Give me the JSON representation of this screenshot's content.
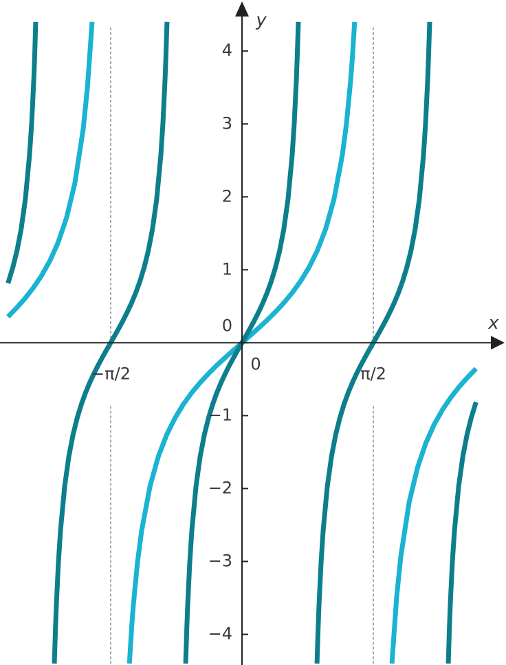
{
  "chart_data": {
    "type": "line",
    "x_label": "x",
    "y_label": "y",
    "xlim": [
      -2.895,
      3.158
    ],
    "ylim": [
      -4.42,
      4.7
    ],
    "xticks": [
      {
        "value": -1.5708,
        "label": "−π/2"
      },
      {
        "value": 0,
        "label": "0"
      },
      {
        "value": 1.5708,
        "label": "π/2"
      }
    ],
    "yticks": [
      {
        "value": -4,
        "label": "−4"
      },
      {
        "value": -3,
        "label": "−3"
      },
      {
        "value": -2,
        "label": "−2"
      },
      {
        "value": -1,
        "label": "−1"
      },
      0,
      1,
      2,
      3,
      4
    ],
    "series": [
      {
        "color": "#1ab3d1",
        "x": [
          -2.8,
          -2.7,
          -2.6,
          -2.5,
          -2.4,
          -2.3,
          -2.2,
          -2.1,
          -2.0,
          -1.9,
          -1.85,
          -1.8,
          -1.794,
          -1.5708,
          -1.347,
          -1.32,
          -1.3,
          -1.25,
          -1.2,
          -1.1,
          -1.0,
          -0.9,
          -0.8,
          -0.7,
          -0.6,
          -0.5,
          -0.4,
          -0.3,
          -0.2,
          -0.1,
          0,
          0.1,
          0.2,
          0.3,
          0.4,
          0.5,
          0.6,
          0.7,
          0.8,
          0.9,
          1.0,
          1.1,
          1.2,
          1.25,
          1.3,
          1.32,
          1.347,
          1.5708,
          1.794,
          1.8,
          1.85,
          1.9,
          2.0,
          2.1,
          2.2,
          2.3,
          2.4,
          2.5,
          2.6,
          2.7,
          2.8
        ],
        "values": [
          0.356,
          0.473,
          0.602,
          0.747,
          0.916,
          1.119,
          1.374,
          1.71,
          2.185,
          2.927,
          3.488,
          4.286,
          4.4,
          null,
          -4.4,
          -3.903,
          -3.602,
          -3.009,
          -2.572,
          -1.965,
          -1.557,
          -1.26,
          -1.03,
          -0.842,
          -0.684,
          -0.546,
          -0.423,
          -0.309,
          -0.203,
          -0.1,
          0,
          0.1,
          0.203,
          0.309,
          0.423,
          0.546,
          0.684,
          0.842,
          1.03,
          1.26,
          1.557,
          1.965,
          2.572,
          3.009,
          3.602,
          3.903,
          4.4,
          null,
          -4.4,
          -4.286,
          -3.488,
          -2.927,
          -2.185,
          -1.71,
          -1.374,
          -1.119,
          -0.916,
          -0.747,
          -0.602,
          -0.473,
          -0.356
        ]
      },
      {
        "color": "#0d7f8c",
        "x": [
          -2.8,
          -2.792,
          -2.742,
          -2.692,
          -2.642,
          -2.592,
          -2.542,
          -2.516,
          -2.491,
          -2.481,
          -2.468,
          -2.356,
          -2.245,
          -2.231,
          -2.221,
          -2.196,
          -2.171,
          -2.121,
          -2.071,
          -2.021,
          -1.971,
          -1.921,
          -1.871,
          -1.821,
          -1.771,
          -1.721,
          -1.671,
          -1.621,
          -1.571,
          -1.521,
          -1.471,
          -1.421,
          -1.371,
          -1.321,
          -1.271,
          -1.221,
          -1.171,
          -1.121,
          -1.071,
          -1.021,
          -0.971,
          -0.946,
          -0.921,
          -0.911,
          -0.897,
          -0.785,
          -0.674,
          -0.66,
          -0.65,
          -0.625,
          -0.6,
          -0.55,
          -0.5,
          -0.45,
          -0.4,
          -0.35,
          -0.3,
          -0.25,
          -0.2,
          -0.15,
          -0.1,
          -0.05,
          0,
          0.05,
          0.1,
          0.15,
          0.2,
          0.25,
          0.3,
          0.35,
          0.4,
          0.45,
          0.5,
          0.55,
          0.6,
          0.625,
          0.65,
          0.66,
          0.674,
          0.785,
          0.897,
          0.911,
          0.921,
          0.946,
          0.971,
          1.021,
          1.071,
          1.121,
          1.171,
          1.221,
          1.271,
          1.321,
          1.371,
          1.421,
          1.471,
          1.521,
          1.571,
          1.621,
          1.671,
          1.721,
          1.771,
          1.821,
          1.871,
          1.921,
          1.971,
          2.021,
          2.071,
          2.121,
          2.171,
          2.196,
          2.221,
          2.231,
          2.245,
          2.356,
          2.468,
          2.481,
          2.491,
          2.516,
          2.542,
          2.592,
          2.642,
          2.692,
          2.742,
          2.792,
          2.8
        ],
        "values": [
          0.815,
          0.842,
          1.03,
          1.26,
          1.557,
          1.965,
          2.572,
          3.009,
          3.602,
          3.903,
          4.4,
          null,
          -4.4,
          -3.903,
          -3.602,
          -3.009,
          -2.572,
          -1.965,
          -1.557,
          -1.26,
          -1.03,
          -0.842,
          -0.684,
          -0.546,
          -0.423,
          -0.309,
          -0.203,
          -0.1,
          0,
          0.1,
          0.203,
          0.309,
          0.423,
          0.546,
          0.684,
          0.842,
          1.03,
          1.26,
          1.557,
          1.965,
          2.572,
          3.009,
          3.602,
          3.903,
          4.4,
          null,
          -4.4,
          -3.903,
          -3.602,
          -3.009,
          -2.572,
          -1.965,
          -1.557,
          -1.26,
          -1.03,
          -0.842,
          -0.684,
          -0.546,
          -0.423,
          -0.309,
          -0.203,
          -0.1,
          0,
          0.1,
          0.203,
          0.309,
          0.423,
          0.546,
          0.684,
          0.842,
          1.03,
          1.26,
          1.557,
          1.965,
          2.572,
          3.009,
          3.602,
          3.903,
          4.4,
          null,
          -4.4,
          -3.903,
          -3.602,
          -3.009,
          -2.572,
          -1.965,
          -1.557,
          -1.26,
          -1.03,
          -0.842,
          -0.684,
          -0.546,
          -0.423,
          -0.309,
          -0.203,
          -0.1,
          0,
          0.1,
          0.203,
          0.309,
          0.423,
          0.546,
          0.684,
          0.842,
          1.03,
          1.26,
          1.557,
          1.965,
          2.572,
          3.009,
          3.602,
          3.903,
          4.4,
          null,
          -4.4,
          -3.903,
          -3.602,
          -3.009,
          -2.572,
          -1.965,
          -1.557,
          -1.26,
          -1.03,
          -0.842,
          -0.815
        ]
      }
    ]
  }
}
